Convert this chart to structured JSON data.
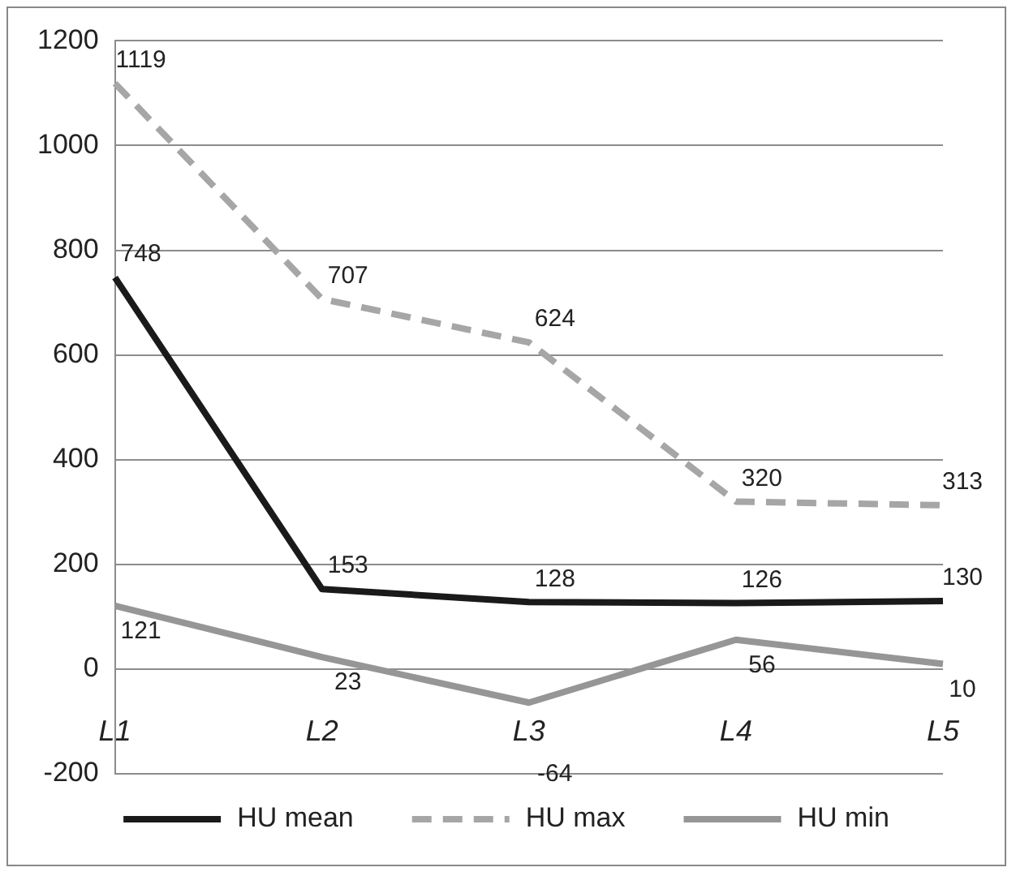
{
  "chart_data": {
    "type": "line",
    "categories": [
      "L1",
      "L2",
      "L3",
      "L4",
      "L5"
    ],
    "series": [
      {
        "name": "HU mean",
        "color": "#1a1a1a",
        "line_style": "solid",
        "values": [
          748,
          153,
          128,
          126,
          130
        ]
      },
      {
        "name": "HU max",
        "color": "#a6a6a6",
        "line_style": "dashed",
        "values": [
          1119,
          707,
          624,
          320,
          313
        ]
      },
      {
        "name": "HU min",
        "color": "#969696",
        "line_style": "solid",
        "values": [
          121,
          23,
          -64,
          56,
          10
        ]
      }
    ],
    "ylim": [
      -200,
      1200
    ],
    "yticks": [
      -200,
      0,
      200,
      400,
      600,
      800,
      1000,
      1200
    ],
    "grid": "y",
    "legend": "bottom",
    "marker": "none",
    "data_labels": true
  }
}
